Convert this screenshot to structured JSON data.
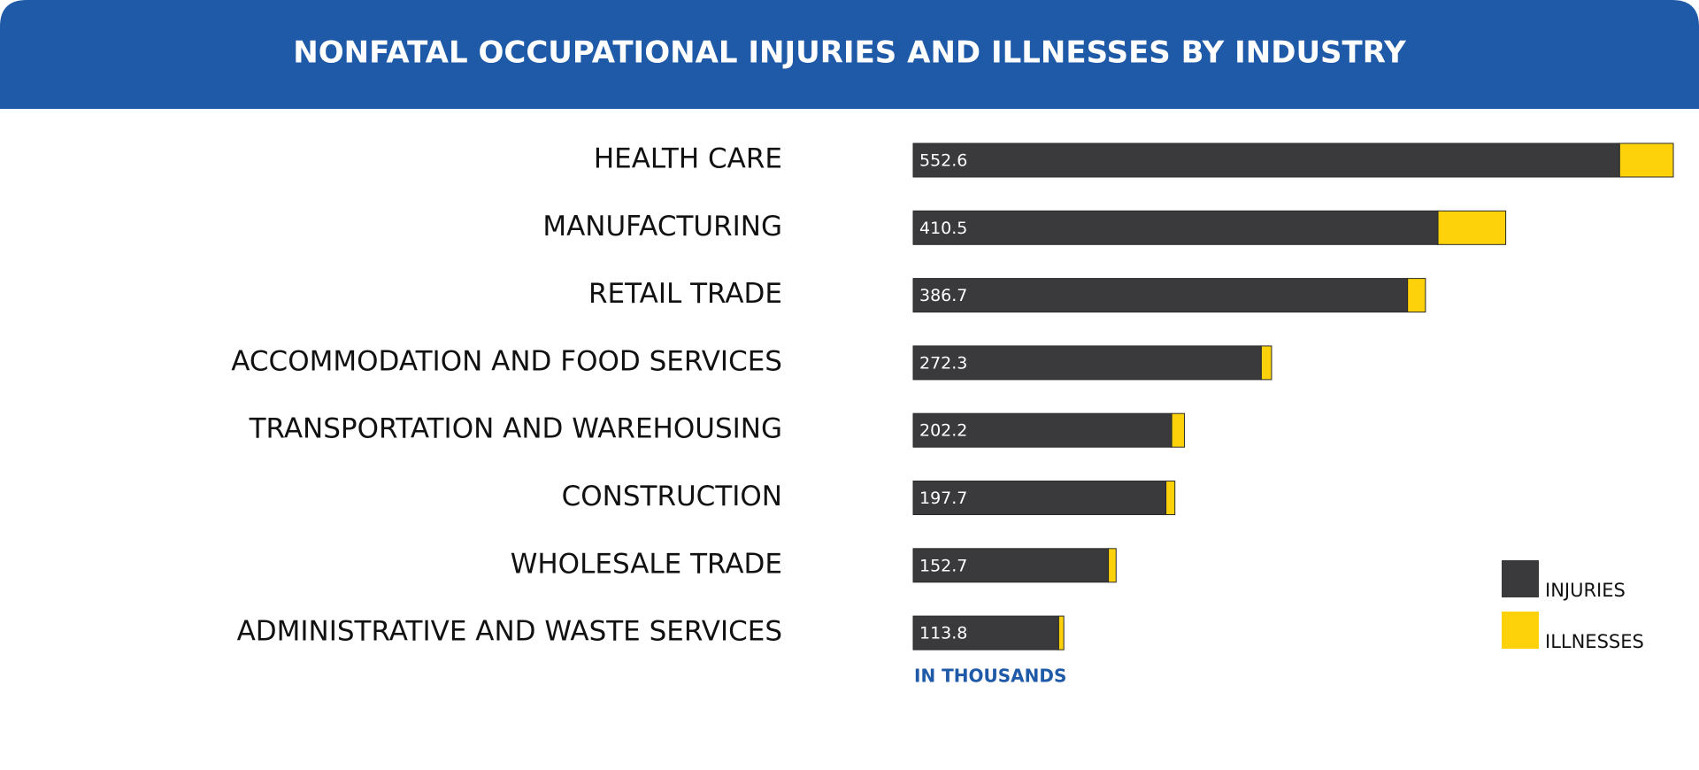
{
  "chart_data": {
    "type": "bar",
    "orientation": "horizontal",
    "stacked": true,
    "title": "NONFATAL OCCUPATIONAL INJURIES AND ILLNESSES BY INDUSTRY",
    "categories": [
      "HEALTH CARE",
      "MANUFACTURING",
      "RETAIL TRADE",
      "ACCOMMODATION AND FOOD SERVICES",
      "TRANSPORTATION AND WAREHOUSING",
      "CONSTRUCTION",
      "WHOLESALE TRADE",
      "ADMINISTRATIVE AND WASTE SERVICES"
    ],
    "series": [
      {
        "name": "INJURIES",
        "color": "#3a3a3c",
        "values": [
          552.6,
          410.5,
          386.7,
          272.3,
          202.2,
          197.7,
          152.7,
          113.8
        ]
      },
      {
        "name": "ILLNESSES",
        "color": "#fdd20a",
        "values": [
          42,
          53,
          14,
          8,
          10,
          7,
          6,
          4
        ]
      }
    ],
    "unit_note": "IN THOUSANDS"
  }
}
